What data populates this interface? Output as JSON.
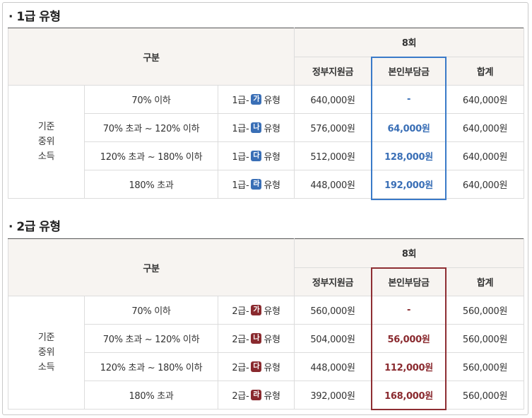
{
  "sections": [
    {
      "title": "· 1급 유형",
      "header": {
        "category": "구분",
        "sessions": "8회",
        "gov_support": "정부지원금",
        "self_pay": "본인부담금",
        "total": "합계"
      },
      "side_label": [
        "기준",
        "중위",
        "소득"
      ],
      "rows": [
        {
          "income": "70% 이하",
          "grade_prefix": "1급-",
          "grade_letter": "가",
          "grade_suffix": "유형",
          "gov": "640,000원",
          "self": "-",
          "total": "640,000원"
        },
        {
          "income": "70% 초과 ~ 120% 이하",
          "grade_prefix": "1급-",
          "grade_letter": "나",
          "grade_suffix": "유형",
          "gov": "576,000원",
          "self": "64,000원",
          "total": "640,000원"
        },
        {
          "income": "120% 초과 ~ 180% 이하",
          "grade_prefix": "1급-",
          "grade_letter": "다",
          "grade_suffix": "유형",
          "gov": "512,000원",
          "self": "128,000원",
          "total": "640,000원"
        },
        {
          "income": "180% 초과",
          "grade_prefix": "1급-",
          "grade_letter": "라",
          "grade_suffix": "유형",
          "gov": "448,000원",
          "self": "192,000원",
          "total": "640,000원"
        }
      ],
      "accent": "#3a6fb6"
    },
    {
      "title": "· 2급 유형",
      "header": {
        "category": "구분",
        "sessions": "8회",
        "gov_support": "정부지원금",
        "self_pay": "본인부담금",
        "total": "합계"
      },
      "side_label": [
        "기준",
        "중위",
        "소득"
      ],
      "rows": [
        {
          "income": "70% 이하",
          "grade_prefix": "2급-",
          "grade_letter": "가",
          "grade_suffix": "유형",
          "gov": "560,000원",
          "self": "-",
          "total": "560,000원"
        },
        {
          "income": "70% 초과 ~ 120% 이하",
          "grade_prefix": "2급-",
          "grade_letter": "나",
          "grade_suffix": "유형",
          "gov": "504,000원",
          "self": "56,000원",
          "total": "560,000원"
        },
        {
          "income": "120% 초과 ~ 180% 이하",
          "grade_prefix": "2급-",
          "grade_letter": "다",
          "grade_suffix": "유형",
          "gov": "448,000원",
          "self": "112,000원",
          "total": "560,000원"
        },
        {
          "income": "180% 초과",
          "grade_prefix": "2급-",
          "grade_letter": "라",
          "grade_suffix": "유형",
          "gov": "392,000원",
          "self": "168,000원",
          "total": "560,000원"
        }
      ],
      "accent": "#8a2a2f"
    }
  ]
}
